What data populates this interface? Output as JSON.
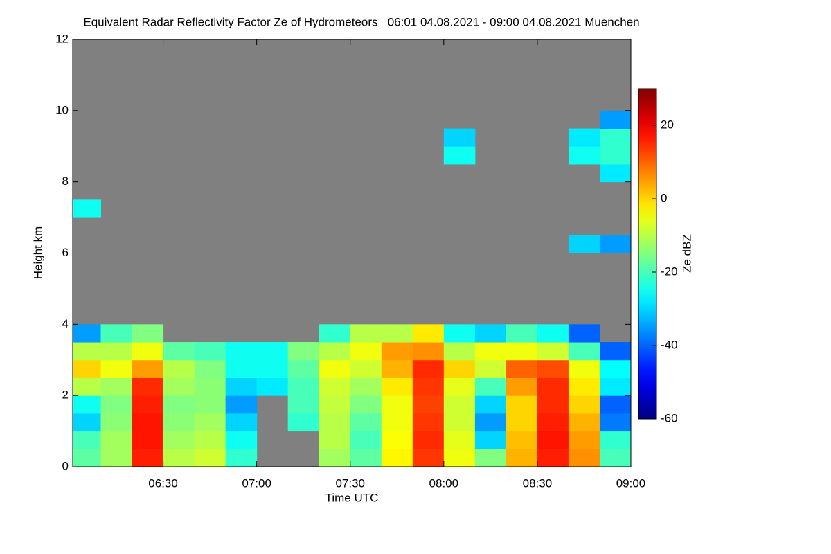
{
  "chart_data": {
    "type": "heatmap",
    "title": "Equivalent Radar Reflectivity Factor Ze of Hydrometeors   06:01 04.08.2021 - 09:00 04.08.2021 Muenchen",
    "xlabel": "Time UTC",
    "ylabel": "Height km",
    "xlim": [
      361,
      540
    ],
    "ylim": [
      0,
      12
    ],
    "xticks": [
      {
        "value": 390,
        "label": "06:30"
      },
      {
        "value": 420,
        "label": "07:00"
      },
      {
        "value": 450,
        "label": "07:30"
      },
      {
        "value": 480,
        "label": "08:00"
      },
      {
        "value": 510,
        "label": "08:30"
      },
      {
        "value": 540,
        "label": "09:00"
      }
    ],
    "yticks": [
      0,
      2,
      4,
      6,
      8,
      10,
      12
    ],
    "xbins": [
      361,
      370,
      380,
      390,
      400,
      410,
      420,
      430,
      440,
      450,
      460,
      470,
      480,
      490,
      500,
      510,
      520,
      530,
      540
    ],
    "ybins": [
      0,
      0.5,
      1,
      1.5,
      2,
      2.5,
      3,
      3.5,
      4,
      4.5,
      5,
      5.5,
      6,
      6.5,
      7,
      7.5,
      8,
      8.5,
      9,
      9.5,
      10,
      10.5,
      11,
      11.5,
      12
    ],
    "z": [
      [
        -18,
        -12,
        16,
        -10,
        -8,
        -22,
        null,
        null,
        -12,
        -18,
        -3,
        14,
        -5,
        -15,
        3,
        16,
        6,
        -20
      ],
      [
        -20,
        -12,
        17,
        -12,
        -10,
        -25,
        null,
        null,
        -10,
        -20,
        -4,
        15,
        -6,
        -30,
        2,
        17,
        5,
        -22
      ],
      [
        -30,
        -14,
        17,
        -14,
        -12,
        -30,
        null,
        -22,
        -10,
        -18,
        -5,
        14,
        -8,
        -35,
        0,
        16,
        3,
        -38
      ],
      [
        -25,
        -15,
        16,
        -15,
        -14,
        -35,
        null,
        -20,
        -9,
        -15,
        -5,
        13,
        -8,
        -30,
        0,
        15,
        0,
        -40
      ],
      [
        -10,
        -12,
        15,
        -12,
        -14,
        -30,
        -28,
        -20,
        -8,
        -12,
        -2,
        14,
        -6,
        -20,
        5,
        15,
        -2,
        -28
      ],
      [
        0,
        -5,
        5,
        -10,
        -15,
        -25,
        -25,
        -18,
        -5,
        -8,
        3,
        15,
        0,
        -8,
        10,
        12,
        -5,
        -26
      ],
      [
        -10,
        -10,
        -5,
        -18,
        -20,
        -25,
        -25,
        -15,
        -10,
        -5,
        5,
        6,
        -10,
        -5,
        -5,
        -8,
        -20,
        -40
      ],
      [
        -35,
        -20,
        -15,
        null,
        null,
        null,
        null,
        null,
        -22,
        -10,
        -10,
        -2,
        -25,
        -30,
        -20,
        -25,
        -40,
        null
      ],
      [
        null,
        null,
        null,
        null,
        null,
        null,
        null,
        null,
        null,
        null,
        null,
        null,
        null,
        null,
        null,
        null,
        null,
        null
      ],
      [
        null,
        null,
        null,
        null,
        null,
        null,
        null,
        null,
        null,
        null,
        null,
        null,
        null,
        null,
        null,
        null,
        null,
        null
      ],
      [
        null,
        null,
        null,
        null,
        null,
        null,
        null,
        null,
        null,
        null,
        null,
        null,
        null,
        null,
        null,
        null,
        null,
        null
      ],
      [
        null,
        null,
        null,
        null,
        null,
        null,
        null,
        null,
        null,
        null,
        null,
        null,
        null,
        null,
        null,
        null,
        null,
        null
      ],
      [
        null,
        null,
        null,
        null,
        null,
        null,
        null,
        null,
        null,
        null,
        null,
        null,
        null,
        null,
        null,
        null,
        -30,
        -35
      ],
      [
        null,
        null,
        null,
        null,
        null,
        null,
        null,
        null,
        null,
        null,
        null,
        null,
        null,
        null,
        null,
        null,
        null,
        null
      ],
      [
        -25,
        null,
        null,
        null,
        null,
        null,
        null,
        null,
        null,
        null,
        null,
        null,
        null,
        null,
        null,
        null,
        null,
        null
      ],
      [
        null,
        null,
        null,
        null,
        null,
        null,
        null,
        null,
        null,
        null,
        null,
        null,
        null,
        null,
        null,
        null,
        null,
        null
      ],
      [
        null,
        null,
        null,
        null,
        null,
        null,
        null,
        null,
        null,
        null,
        null,
        null,
        null,
        null,
        null,
        null,
        null,
        -28
      ],
      [
        null,
        null,
        null,
        null,
        null,
        null,
        null,
        null,
        null,
        null,
        null,
        null,
        -25,
        null,
        null,
        null,
        -25,
        -22
      ],
      [
        null,
        null,
        null,
        null,
        null,
        null,
        null,
        null,
        null,
        null,
        null,
        null,
        -30,
        null,
        null,
        null,
        -28,
        -22
      ],
      [
        null,
        null,
        null,
        null,
        null,
        null,
        null,
        null,
        null,
        null,
        null,
        null,
        null,
        null,
        null,
        null,
        null,
        -35
      ],
      [
        null,
        null,
        null,
        null,
        null,
        null,
        null,
        null,
        null,
        null,
        null,
        null,
        null,
        null,
        null,
        null,
        null,
        null
      ],
      [
        null,
        null,
        null,
        null,
        null,
        null,
        null,
        null,
        null,
        null,
        null,
        null,
        null,
        null,
        null,
        null,
        null,
        null
      ],
      [
        null,
        null,
        null,
        null,
        null,
        null,
        null,
        null,
        null,
        null,
        null,
        null,
        null,
        null,
        null,
        null,
        null,
        null
      ],
      [
        null,
        null,
        null,
        null,
        null,
        null,
        null,
        null,
        null,
        null,
        null,
        null,
        null,
        null,
        null,
        null,
        null,
        null
      ]
    ],
    "background": "#808080",
    "colorbar": {
      "label": "Ze dBZ",
      "lim": [
        -60,
        30
      ],
      "ticks": [
        -60,
        -40,
        -20,
        0,
        20
      ]
    }
  }
}
